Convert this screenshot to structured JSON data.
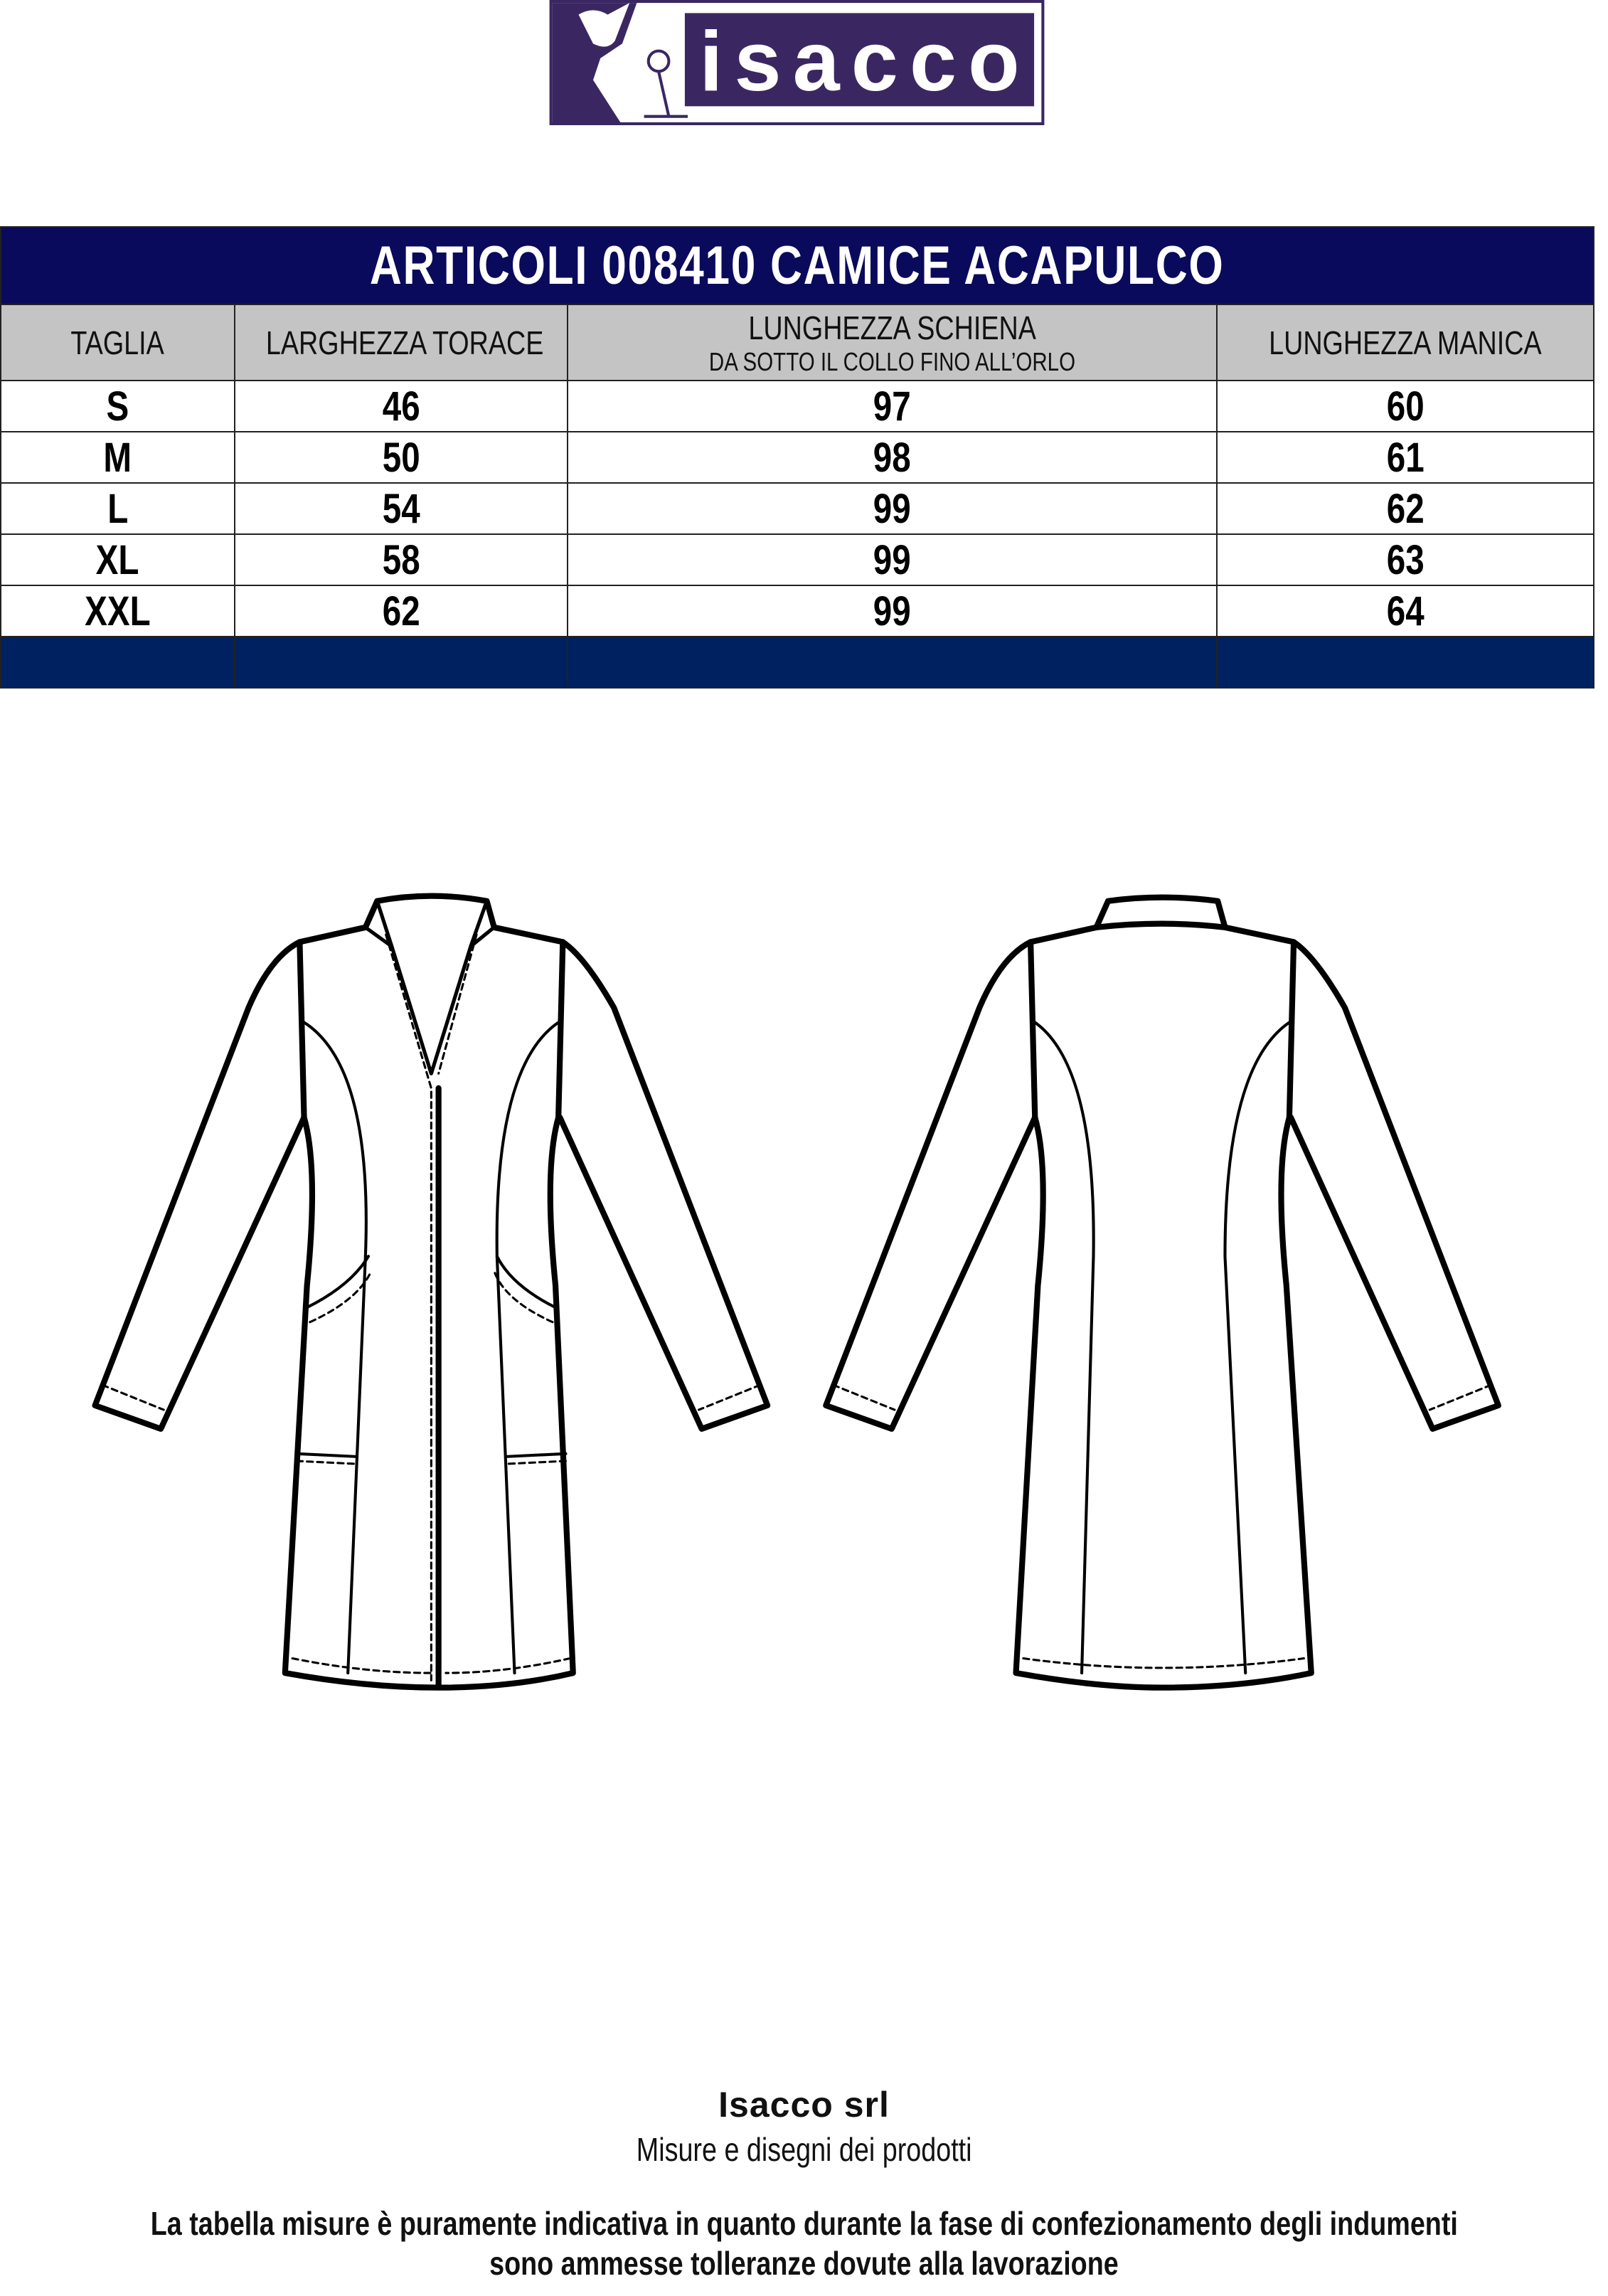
{
  "logo": {
    "text": "isacco",
    "color": "#3a2762"
  },
  "table": {
    "title": "ARTICOLI 008410 CAMICE ACAPULCO",
    "headers": {
      "size": "TAGLIA",
      "chest": "LARGHEZZA TORACE",
      "back": "LUNGHEZZA SCHIENA",
      "back_note": "DA SOTTO IL COLLO FINO ALL’ORLO",
      "sleeve": "LUNGHEZZA MANICA"
    },
    "rows": [
      {
        "size": "S",
        "chest": "46",
        "back": "97",
        "sleeve": "60"
      },
      {
        "size": "M",
        "chest": "50",
        "back": "98",
        "sleeve": "61"
      },
      {
        "size": "L",
        "chest": "54",
        "back": "99",
        "sleeve": "62"
      },
      {
        "size": "XL",
        "chest": "58",
        "back": "99",
        "sleeve": "63"
      },
      {
        "size": "XXL",
        "chest": "62",
        "back": "99",
        "sleeve": "64"
      }
    ],
    "colors": {
      "title_bg": "#0a0a5c",
      "header_bg": "#c4c4c4",
      "band_bg": "#00215f"
    }
  },
  "footer": {
    "company": "Isacco srl",
    "subtitle": "Misure e disegni dei prodotti",
    "disclaimer_line1": "La tabella misure è puramente indicativa in quanto durante la fase di confezionamento degli indumenti",
    "disclaimer_line2": "sono ammesse tolleranze dovute alla lavorazione"
  }
}
